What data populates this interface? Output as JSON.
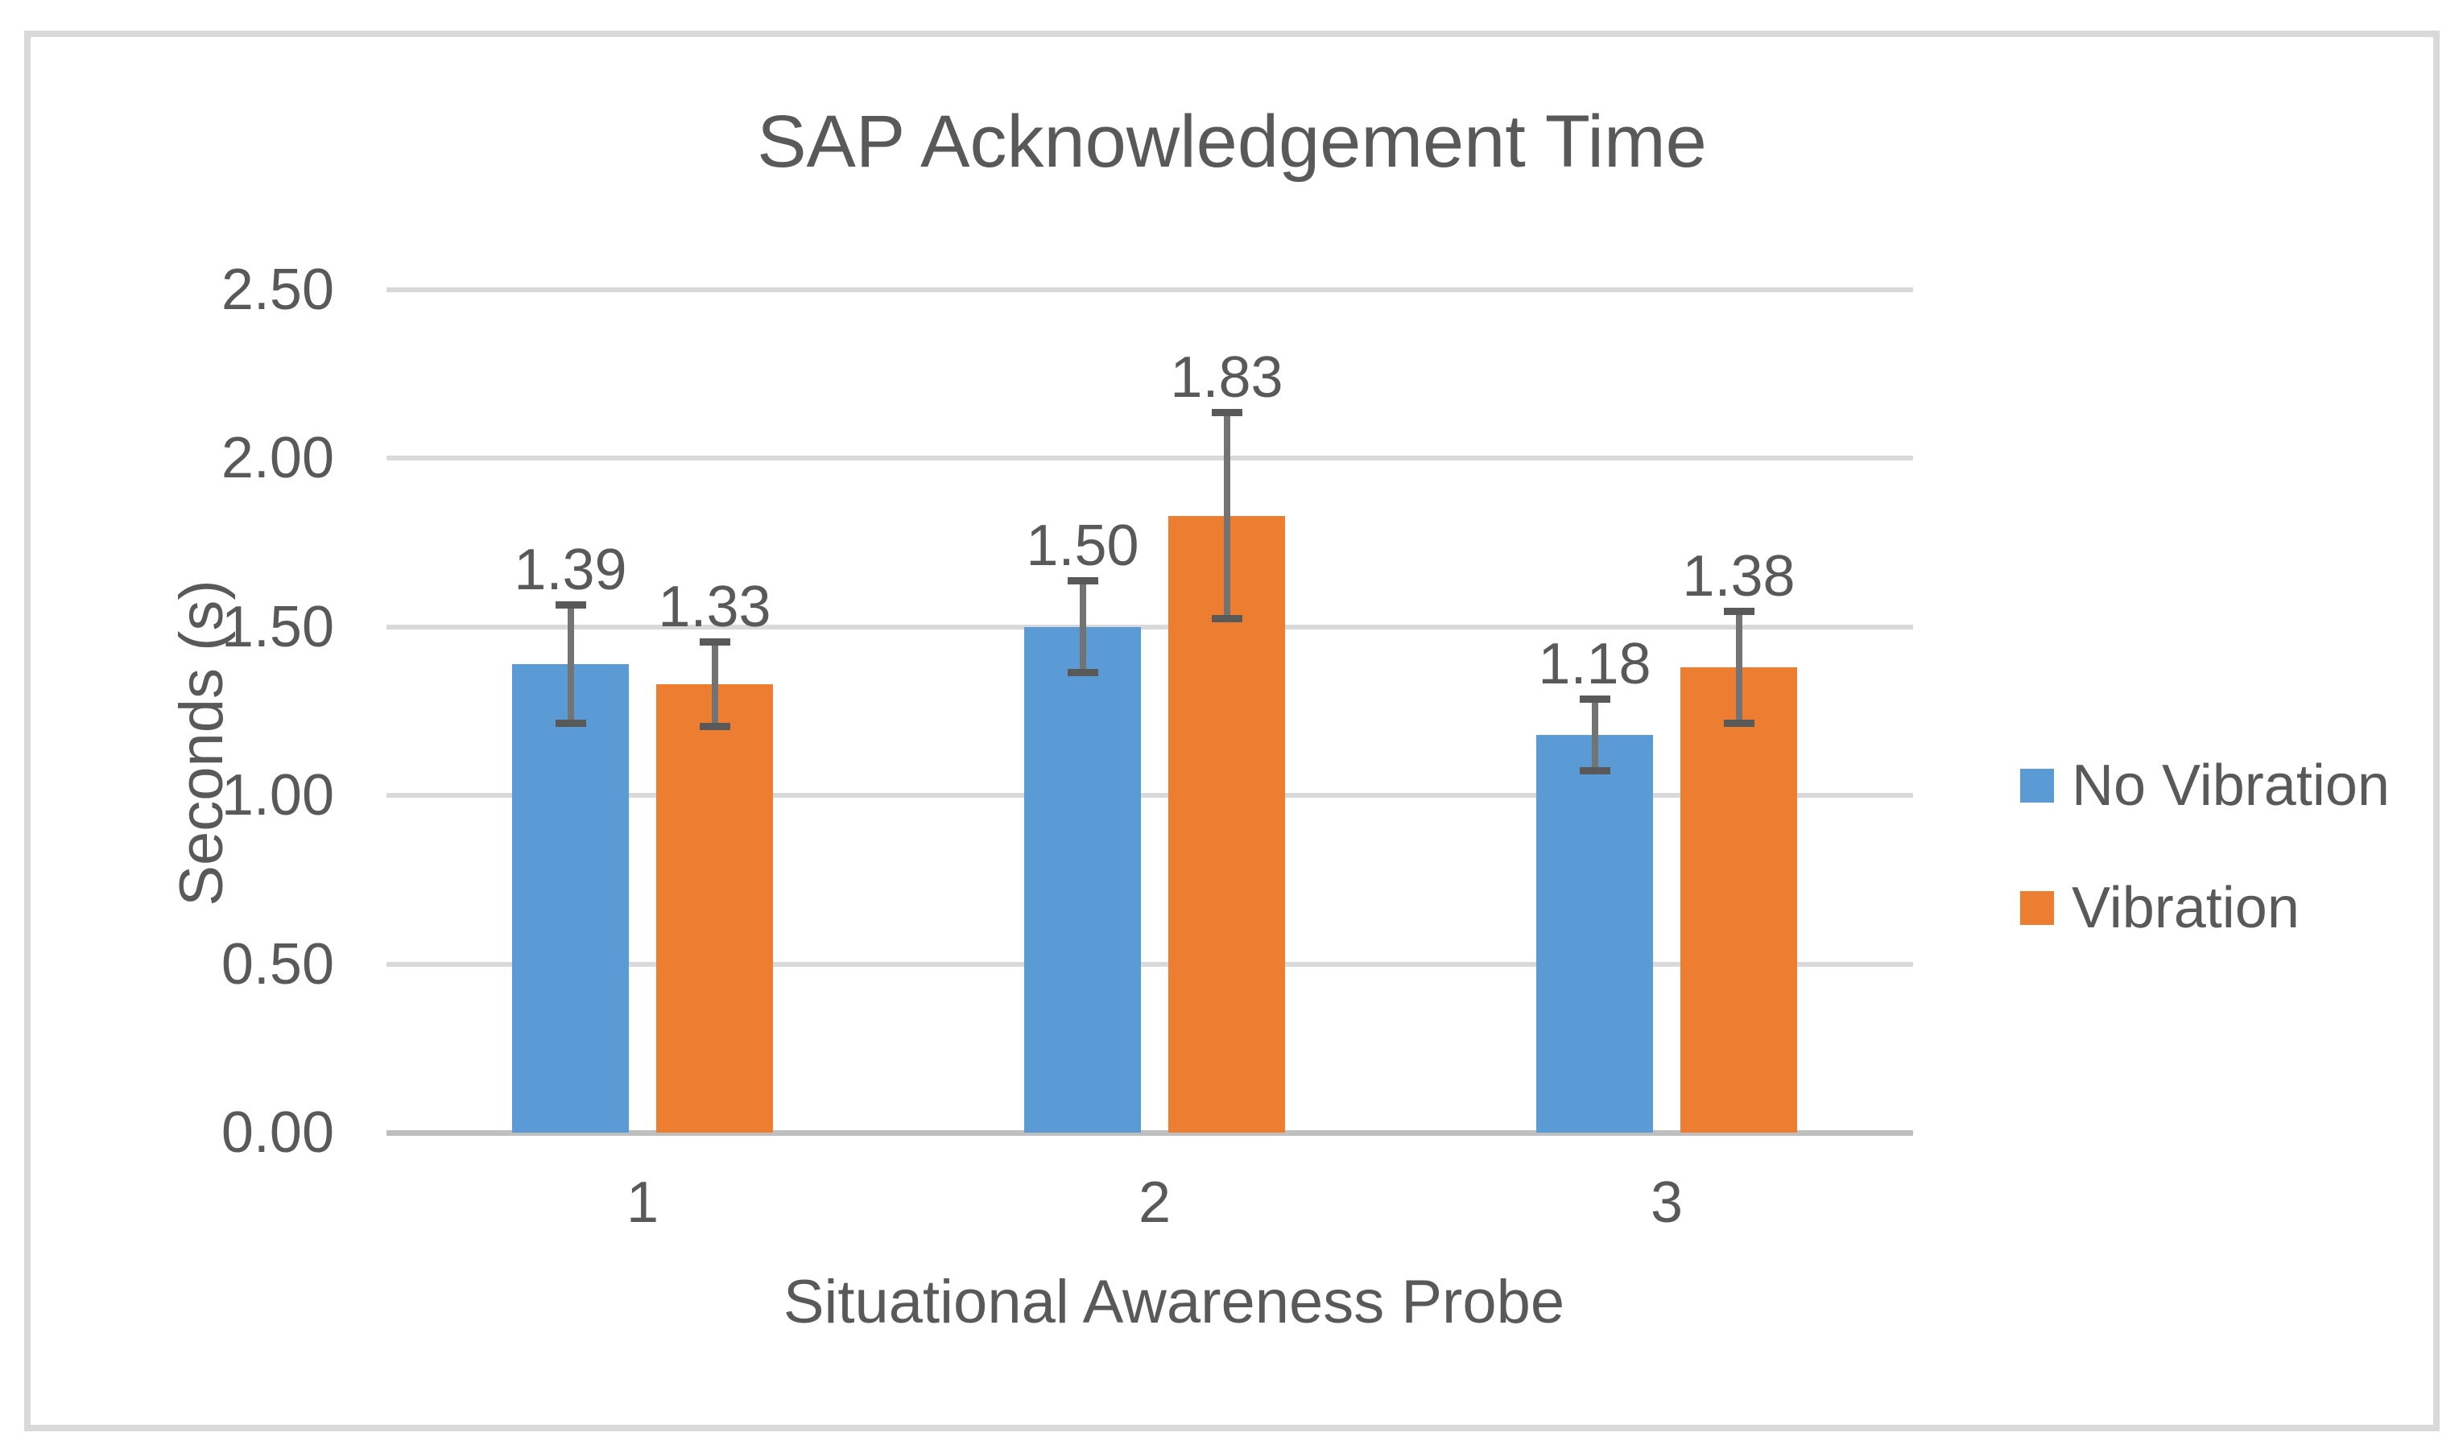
{
  "window": {
    "background": "#FFFFFF",
    "border_color": "#D9D9D9"
  },
  "chart_data": {
    "type": "bar",
    "title": "SAP Acknowledgement Time",
    "xlabel": "Situational Awareness Probe",
    "ylabel": "Seconds (s)",
    "categories": [
      "1",
      "2",
      "3"
    ],
    "series": [
      {
        "name": "No Vibration",
        "color": "#5B9BD5",
        "values": [
          1.39,
          1.5,
          1.18
        ],
        "labels": [
          "1.39",
          "1.50",
          "1.18"
        ],
        "error": [
          0.17,
          0.13,
          0.1
        ]
      },
      {
        "name": "Vibration",
        "color": "#ED7D31",
        "values": [
          1.33,
          1.83,
          1.38
        ],
        "labels": [
          "1.33",
          "1.83",
          "1.38"
        ],
        "error": [
          0.12,
          0.3,
          0.16
        ]
      }
    ],
    "ylim": [
      0,
      2.5
    ],
    "ytick_step": 0.5,
    "yticks": [
      "0.00",
      "0.50",
      "1.00",
      "1.50",
      "2.00",
      "2.50"
    ],
    "grid": true,
    "legend_position": "right",
    "gridline_color": "#D9D9D9",
    "axis_line_color": "#BFBFBF",
    "error_bar_color": "#595959",
    "text_color": "#595959"
  }
}
